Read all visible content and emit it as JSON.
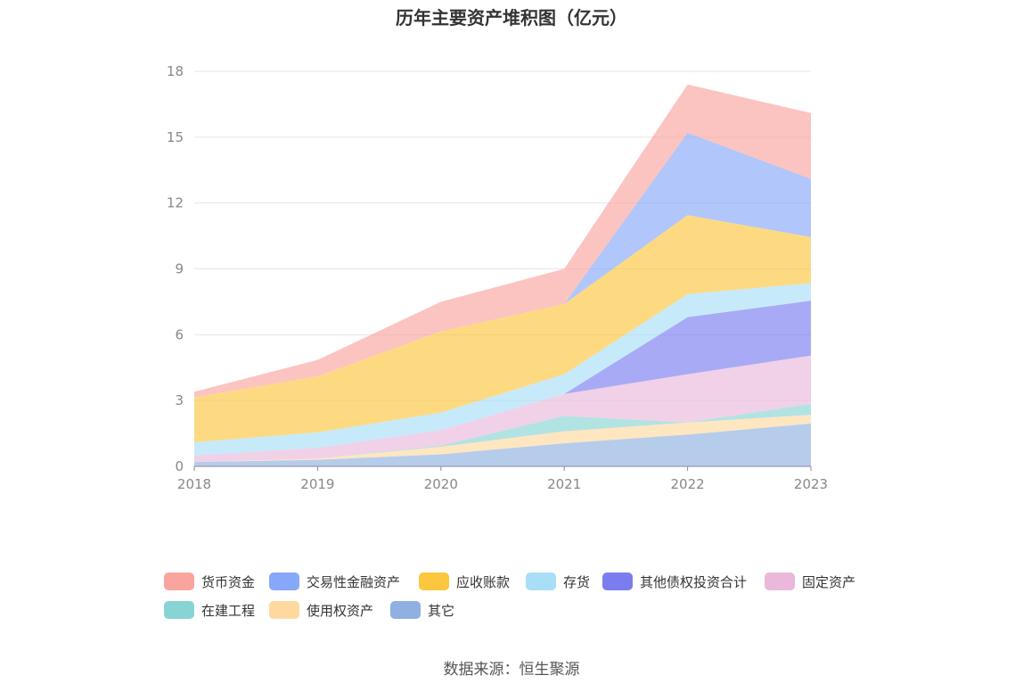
{
  "chart_data": {
    "type": "area",
    "stacked": true,
    "title": "历年主要资产堆积图（亿元）",
    "categories": [
      "2018",
      "2019",
      "2020",
      "2021",
      "2022",
      "2023"
    ],
    "ylim": [
      0,
      18
    ],
    "yticks": [
      0,
      3,
      6,
      9,
      12,
      15,
      18
    ],
    "grid": true,
    "legend_position": "bottom",
    "series": [
      {
        "name": "其它",
        "color": "#8fb0e0",
        "values": [
          0.2,
          0.3,
          0.55,
          1.05,
          1.45,
          1.95
        ]
      },
      {
        "name": "使用权资产",
        "color": "#fdd9a0",
        "values": [
          0.0,
          0.05,
          0.35,
          0.55,
          0.55,
          0.4
        ]
      },
      {
        "name": "在建工程",
        "color": "#88d4d4",
        "values": [
          0.0,
          0.0,
          0.05,
          0.7,
          0.0,
          0.5
        ]
      },
      {
        "name": "固定资产",
        "color": "#e9b8da",
        "values": [
          0.3,
          0.5,
          0.7,
          1.0,
          2.2,
          2.2
        ]
      },
      {
        "name": "其他债权投资合计",
        "color": "#7b7cf0",
        "values": [
          0.0,
          0.0,
          0.0,
          0.0,
          2.6,
          2.5
        ]
      },
      {
        "name": "存货",
        "color": "#a8dff7",
        "values": [
          0.6,
          0.7,
          0.8,
          0.9,
          1.05,
          0.8
        ]
      },
      {
        "name": "应收账款",
        "color": "#fcc63f",
        "values": [
          2.05,
          2.55,
          3.7,
          3.2,
          3.6,
          2.1
        ]
      },
      {
        "name": "交易性金融资产",
        "color": "#87a7f8",
        "values": [
          0.0,
          0.0,
          0.0,
          0.0,
          3.75,
          2.65
        ]
      },
      {
        "name": "货币资金",
        "color": "#f9a59e",
        "values": [
          0.25,
          0.75,
          1.35,
          1.6,
          2.2,
          3.0
        ]
      }
    ],
    "legend_order": [
      "货币资金",
      "交易性金融资产",
      "应收账款",
      "存货",
      "其他债权投资合计",
      "固定资产",
      "在建工程",
      "使用权资产",
      "其它"
    ]
  },
  "source_note": "数据来源：恒生聚源"
}
